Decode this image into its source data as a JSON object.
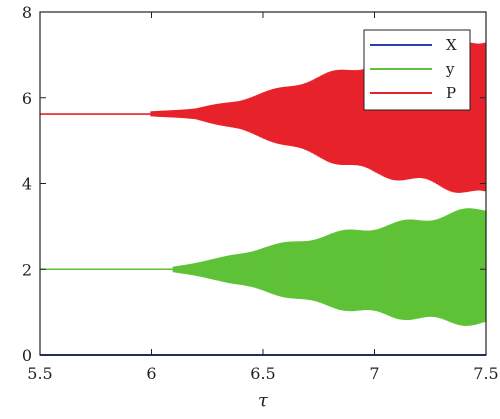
{
  "chart_data": {
    "type": "line",
    "title": "",
    "xlabel": "τ",
    "ylabel": "",
    "xlim": [
      5.5,
      7.5
    ],
    "ylim": [
      0,
      8
    ],
    "xticks": [
      5.5,
      6,
      6.5,
      7,
      7.5
    ],
    "xtick_labels": [
      "5.5",
      "6",
      "6.5",
      "7",
      "7.5"
    ],
    "yticks": [
      0,
      2,
      4,
      6,
      8
    ],
    "ytick_labels": [
      "0",
      "2",
      "4",
      "6",
      "8"
    ],
    "grid": false,
    "legend": {
      "position": "top-right"
    },
    "series": [
      {
        "name": "X",
        "color": "#2a3fb0",
        "kind": "constant",
        "x": [
          5.5,
          7.5
        ],
        "y": [
          0,
          0
        ]
      },
      {
        "name": "y",
        "color": "#5fc236",
        "kind": "bifurcation",
        "steady_value": 2.0,
        "onset": 6.1,
        "x": [
          6.1,
          6.3,
          6.5,
          6.7,
          6.9,
          7.1,
          7.3,
          7.5
        ],
        "y_min": [
          1.93,
          1.75,
          1.5,
          1.25,
          1.05,
          0.9,
          0.8,
          0.72
        ],
        "y_max": [
          2.06,
          2.25,
          2.5,
          2.7,
          2.9,
          3.05,
          3.25,
          3.42
        ]
      },
      {
        "name": "P",
        "color": "#e8222a",
        "kind": "bifurcation",
        "steady_value": 5.62,
        "onset": 6.0,
        "x": [
          6.0,
          6.2,
          6.4,
          6.6,
          6.8,
          7.0,
          7.2,
          7.4,
          7.5
        ],
        "y_min": [
          5.57,
          5.5,
          5.25,
          4.9,
          4.55,
          4.25,
          4.05,
          3.85,
          3.7
        ],
        "y_max": [
          5.68,
          5.75,
          5.95,
          6.25,
          6.55,
          6.8,
          7.0,
          7.25,
          7.4
        ]
      }
    ]
  }
}
